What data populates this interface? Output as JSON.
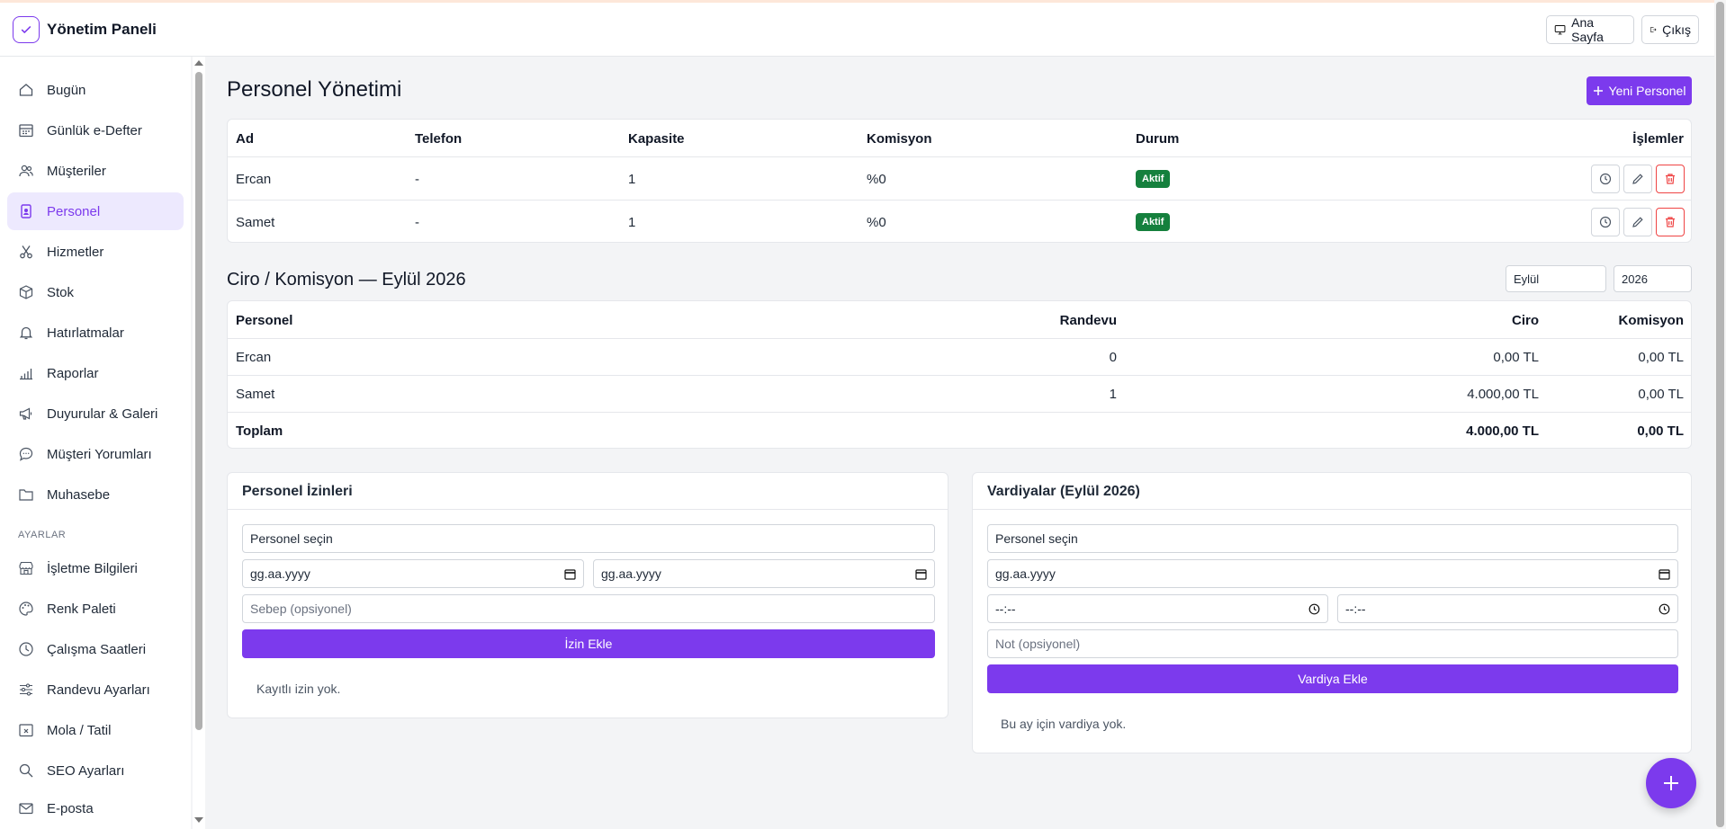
{
  "app": {
    "title": "Yönetim Paneli"
  },
  "header": {
    "home_label": "Ana Sayfa",
    "logout_label": "Çıkış"
  },
  "sidebar": {
    "items": [
      {
        "label": "Bugün",
        "icon": "home-icon"
      },
      {
        "label": "Günlük e-Defter",
        "icon": "calendar-icon"
      },
      {
        "label": "Müşteriler",
        "icon": "users-icon"
      },
      {
        "label": "Personel",
        "icon": "badge-icon",
        "active": true
      },
      {
        "label": "Hizmetler",
        "icon": "scissors-icon"
      },
      {
        "label": "Stok",
        "icon": "box-icon"
      },
      {
        "label": "Hatırlatmalar",
        "icon": "bell-icon"
      },
      {
        "label": "Raporlar",
        "icon": "bar-chart-icon"
      },
      {
        "label": "Duyurular & Galeri",
        "icon": "megaphone-icon"
      },
      {
        "label": "Müşteri Yorumları",
        "icon": "chat-icon"
      },
      {
        "label": "Muhasebe",
        "icon": "folder-icon"
      }
    ],
    "settings_heading": "AYARLAR",
    "settings_items": [
      {
        "label": "İşletme Bilgileri",
        "icon": "store-icon"
      },
      {
        "label": "Renk Paleti",
        "icon": "palette-icon"
      },
      {
        "label": "Çalışma Saatleri",
        "icon": "clock-icon"
      },
      {
        "label": "Randevu Ayarları",
        "icon": "sliders-icon"
      },
      {
        "label": "Mola / Tatil",
        "icon": "calendar-x-icon"
      },
      {
        "label": "SEO Ayarları",
        "icon": "search-icon"
      },
      {
        "label": "E-posta",
        "icon": "mail-icon"
      }
    ]
  },
  "page": {
    "title": "Personel Yönetimi",
    "new_staff_label": "Yeni Personel"
  },
  "staff_table": {
    "columns": [
      "Ad",
      "Telefon",
      "Kapasite",
      "Komisyon",
      "Durum",
      "İşlemler"
    ],
    "rows": [
      {
        "name": "Ercan",
        "phone": "-",
        "capacity": "1",
        "commission": "%0",
        "status": "Aktif"
      },
      {
        "name": "Samet",
        "phone": "-",
        "capacity": "1",
        "commission": "%0",
        "status": "Aktif"
      }
    ]
  },
  "revenue": {
    "title": "Ciro / Komisyon — Eylül 2026",
    "month_value": "Eylül",
    "year_value": "2026",
    "columns": [
      "Personel",
      "Randevu",
      "Ciro",
      "Komisyon"
    ],
    "rows": [
      {
        "name": "Ercan",
        "appointments": "0",
        "revenue": "0,00 TL",
        "commission": "0,00 TL"
      },
      {
        "name": "Samet",
        "appointments": "1",
        "revenue": "4.000,00 TL",
        "commission": "0,00 TL"
      }
    ],
    "total": {
      "label": "Toplam",
      "revenue": "4.000,00 TL",
      "commission": "0,00 TL"
    }
  },
  "leave_panel": {
    "title": "Personel İzinleri",
    "staff_select": "Personel seçin",
    "start_date": "gg.aa.yyyy",
    "end_date": "gg.aa.yyyy",
    "reason_placeholder": "Sebep (opsiyonel)",
    "add_label": "İzin Ekle",
    "empty_text": "Kayıtlı izin yok."
  },
  "shift_panel": {
    "title": "Vardiyalar (Eylül 2026)",
    "staff_select": "Personel seçin",
    "date": "gg.aa.yyyy",
    "start_time": "--:--",
    "end_time": "--:--",
    "note_placeholder": "Not (opsiyonel)",
    "add_label": "Vardiya Ekle",
    "empty_text": "Bu ay için vardiya yok."
  },
  "colors": {
    "accent": "#7c3aed",
    "success": "#15803d",
    "danger": "#ef4444"
  }
}
